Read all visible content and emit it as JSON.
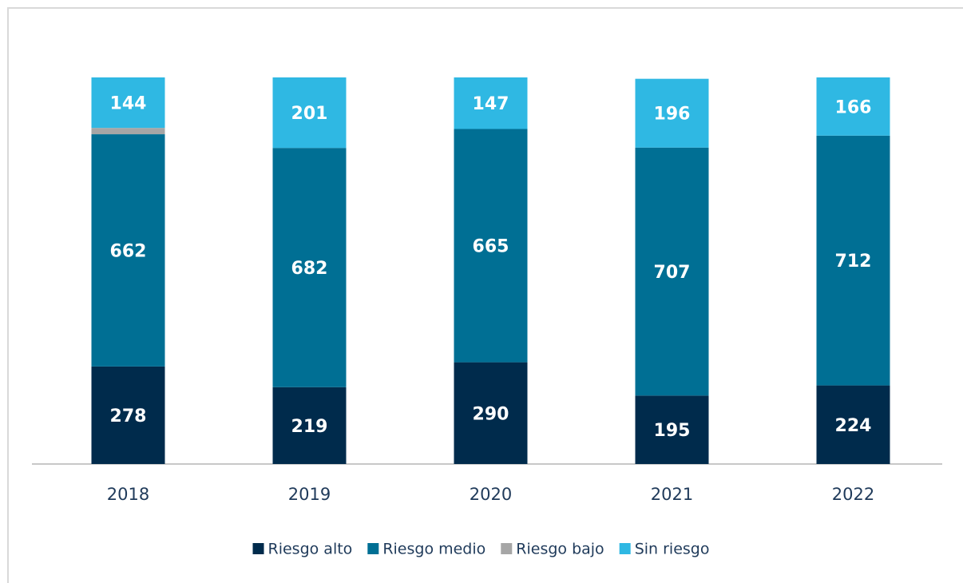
{
  "chart_data": {
    "type": "stacked_bar",
    "categories": [
      "2018",
      "2019",
      "2020",
      "2021",
      "2022"
    ],
    "series": [
      {
        "name": "Riesgo alto",
        "color": "#002b4c",
        "values": [
          278,
          219,
          290,
          195,
          224
        ]
      },
      {
        "name": "Riesgo medio",
        "color": "#006f94",
        "values": [
          662,
          682,
          665,
          707,
          712
        ]
      },
      {
        "name": "Riesgo bajo",
        "color": "#a6a6a6",
        "values": [
          18,
          0,
          0,
          0,
          0
        ],
        "show_labels": false
      },
      {
        "name": "Sin riesgo",
        "color": "#2fb8e3",
        "values": [
          144,
          201,
          147,
          196,
          166
        ]
      }
    ],
    "ylim": [
      0,
      1120
    ],
    "legend": "bottom"
  }
}
